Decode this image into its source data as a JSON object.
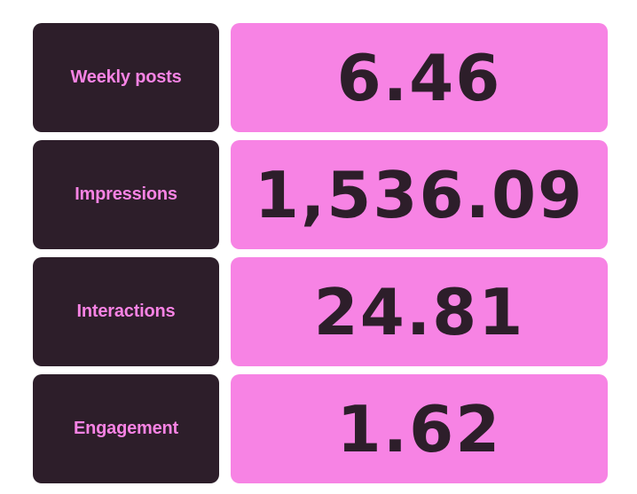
{
  "colors": {
    "label_bg": "#2d1e2a",
    "label_text": "#f783e4",
    "value_bg": "#f783e4",
    "value_text": "#2d1e2a"
  },
  "metrics": [
    {
      "label": "Weekly posts",
      "value": "6.46"
    },
    {
      "label": "Impressions",
      "value": "1,536.09"
    },
    {
      "label": "Interactions",
      "value": "24.81"
    },
    {
      "label": "Engagement",
      "value": "1.62"
    }
  ]
}
